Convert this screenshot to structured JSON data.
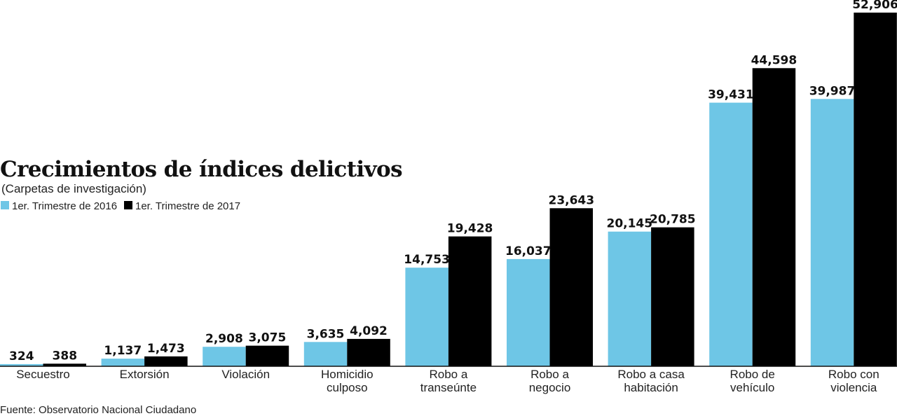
{
  "title": "Crecimientos de índices delictivos",
  "subtitle": "(Carpetas de investigación)",
  "source": "Fuente: Observatorio Nacional Ciudadano",
  "colors": {
    "series_2016": "#6ec6e6",
    "series_2017": "#000000",
    "axis": "#111111"
  },
  "chart_data": {
    "type": "bar",
    "title": "Crecimientos de índices delictivos",
    "subtitle": "(Carpetas de investigación)",
    "xlabel": "",
    "ylabel": "",
    "ylim": [
      0,
      55000
    ],
    "grid": false,
    "legend_position": "top-left",
    "categories": [
      [
        "Secuestro"
      ],
      [
        "Extorsión"
      ],
      [
        "Violación"
      ],
      [
        "Homicidio",
        "culposo"
      ],
      [
        "Robo a",
        "transeúnte"
      ],
      [
        "Robo a",
        "negocio"
      ],
      [
        "Robo a casa",
        "habitación"
      ],
      [
        "Robo de",
        "vehículo"
      ],
      [
        "Robo con",
        "violencia"
      ]
    ],
    "series": [
      {
        "name": "1er. Trimestre de 2016",
        "values": [
          324,
          1137,
          2908,
          3635,
          14753,
          16037,
          20145,
          39431,
          39987
        ],
        "labels": [
          "324",
          "1,137",
          "2,908",
          "3,635",
          "14,753",
          "16,037",
          "20,145",
          "39,431",
          "39,987"
        ]
      },
      {
        "name": "1er. Trimestre de 2017",
        "values": [
          388,
          1473,
          3075,
          4092,
          19428,
          23643,
          20785,
          44598,
          52906
        ],
        "labels": [
          "388",
          "1,473",
          "3,075",
          "4,092",
          "19,428",
          "23,643",
          "20,785",
          "44,598",
          "52,906"
        ]
      }
    ]
  }
}
